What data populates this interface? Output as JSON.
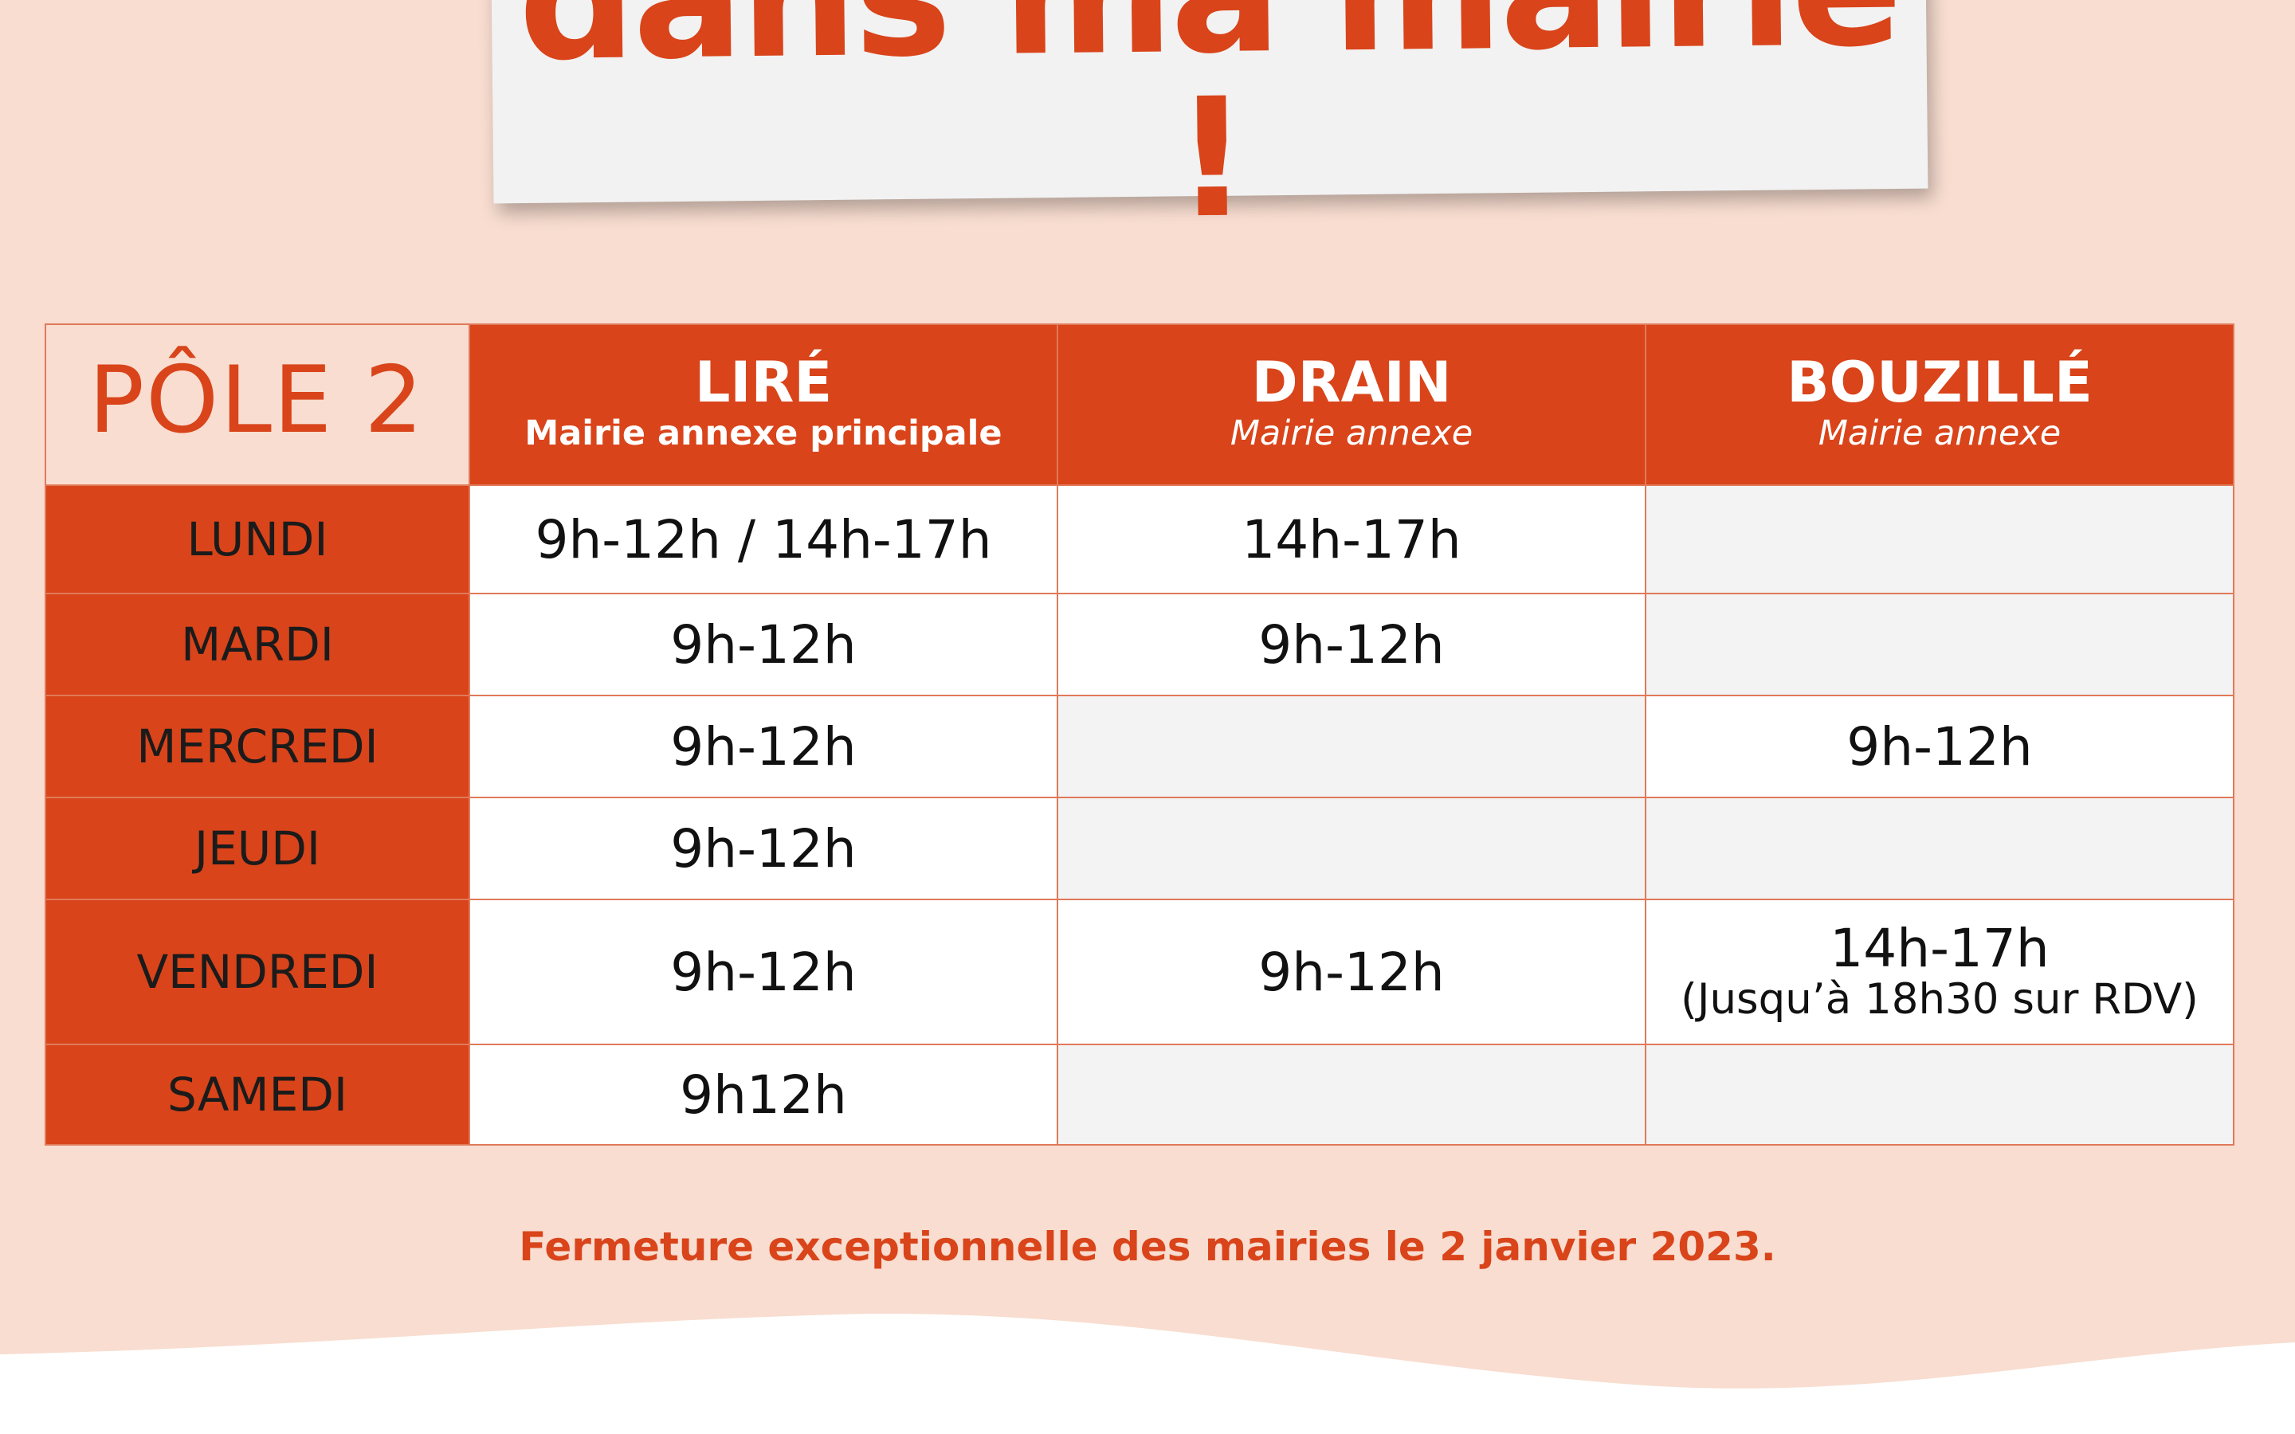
{
  "colors": {
    "accent": "#d9441a",
    "background_peach": "#f8ddd0",
    "card": "#f2f2f2",
    "empty_cell": "#f3f3f3"
  },
  "title": "dans ma mairie !",
  "pole_label": "PÔLE 2",
  "columns": [
    {
      "name": "LIRÉ",
      "subtitle": "Mairie annexe principale"
    },
    {
      "name": "DRAIN",
      "subtitle": "Mairie annexe"
    },
    {
      "name": "BOUZILLÉ",
      "subtitle": "Mairie annexe"
    }
  ],
  "rows": [
    {
      "day": "LUNDI",
      "cells": [
        "9h-12h / 14h-17h",
        "14h-17h",
        ""
      ]
    },
    {
      "day": "MARDI",
      "cells": [
        "9h-12h",
        "9h-12h",
        ""
      ]
    },
    {
      "day": "MERCREDI",
      "cells": [
        "9h-12h",
        "",
        "9h-12h"
      ]
    },
    {
      "day": "JEUDI",
      "cells": [
        "9h-12h",
        "",
        ""
      ]
    },
    {
      "day": "VENDREDI",
      "cells": [
        "9h-12h",
        "9h-12h",
        "14h-17h"
      ],
      "note": "(Jusqu’à 18h30 sur RDV)"
    },
    {
      "day": "SAMEDI",
      "cells": [
        "9h12h",
        "",
        ""
      ]
    }
  ],
  "footnote": "Fermeture exceptionnelle des mairies le 2 janvier 2023."
}
